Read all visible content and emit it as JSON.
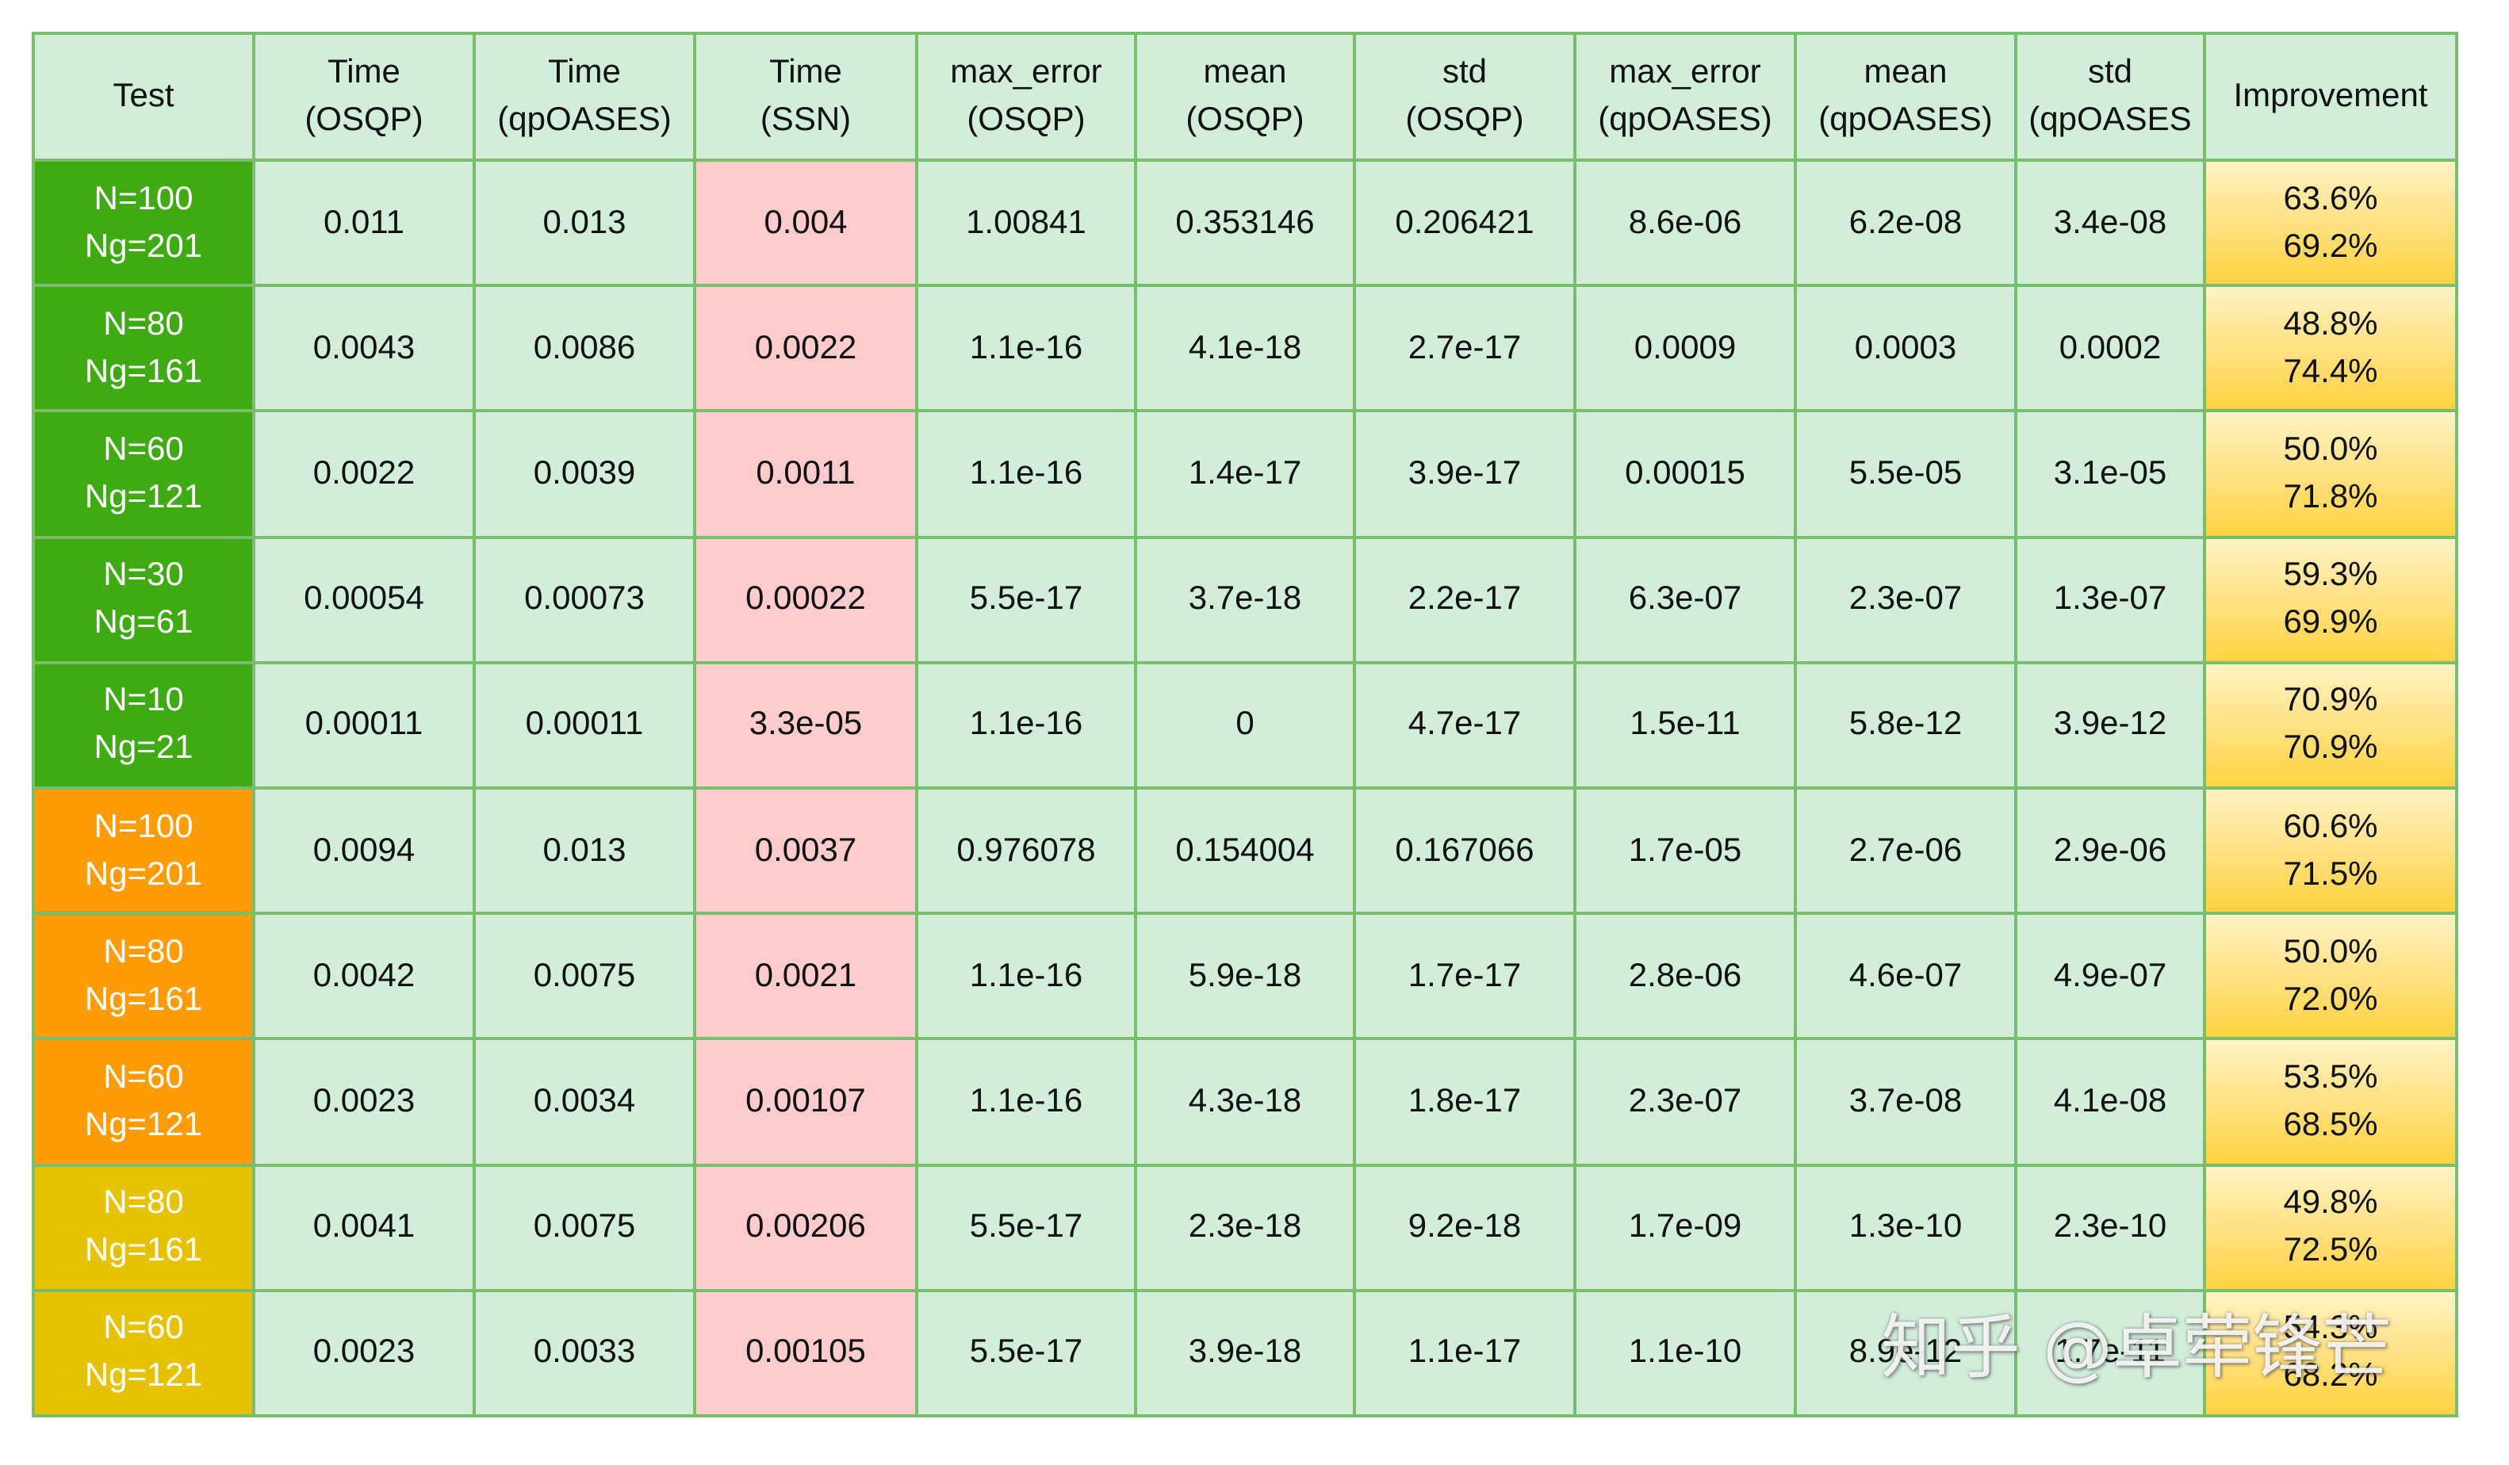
{
  "table": {
    "headers": [
      "Test",
      "Time\n(OSQP)",
      "Time\n(qpOASES)",
      "Time\n(SSN)",
      "max_error\n(OSQP)",
      "mean\n(OSQP)",
      "std\n(OSQP)",
      "max_error\n(qpOASES)",
      "mean\n(qpOASES)",
      "std\n(qpOASES",
      "Improvement"
    ],
    "colors": {
      "green_group": "#3faa12",
      "orange_group": "#fd9c04",
      "yellow_group": "#e6c300",
      "cell_bg": "#d3eddb",
      "ssn_bg": "#fecccc",
      "border": "#79be6c"
    },
    "rows": [
      {
        "group": "green",
        "test": "N=100\nNg=201",
        "time_osqp": "0.011",
        "time_qpoases": "0.013",
        "time_ssn": "0.004",
        "max_error_osqp": "1.00841",
        "mean_osqp": "0.353146",
        "std_osqp": "0.206421",
        "max_error_qpoases": "8.6e-06",
        "mean_qpoases": "6.2e-08",
        "std_qpoases": "3.4e-08",
        "improvement": "63.6%\n69.2%"
      },
      {
        "group": "green",
        "test": "N=80\nNg=161",
        "time_osqp": "0.0043",
        "time_qpoases": "0.0086",
        "time_ssn": "0.0022",
        "max_error_osqp": "1.1e-16",
        "mean_osqp": "4.1e-18",
        "std_osqp": "2.7e-17",
        "max_error_qpoases": "0.0009",
        "mean_qpoases": "0.0003",
        "std_qpoases": "0.0002",
        "improvement": "48.8%\n74.4%"
      },
      {
        "group": "green",
        "test": "N=60\nNg=121",
        "time_osqp": "0.0022",
        "time_qpoases": "0.0039",
        "time_ssn": "0.0011",
        "max_error_osqp": "1.1e-16",
        "mean_osqp": "1.4e-17",
        "std_osqp": "3.9e-17",
        "max_error_qpoases": "0.00015",
        "mean_qpoases": "5.5e-05",
        "std_qpoases": "3.1e-05",
        "improvement": "50.0%\n71.8%"
      },
      {
        "group": "green",
        "test": "N=30\nNg=61",
        "time_osqp": "0.00054",
        "time_qpoases": "0.00073",
        "time_ssn": "0.00022",
        "max_error_osqp": "5.5e-17",
        "mean_osqp": "3.7e-18",
        "std_osqp": "2.2e-17",
        "max_error_qpoases": "6.3e-07",
        "mean_qpoases": "2.3e-07",
        "std_qpoases": "1.3e-07",
        "improvement": "59.3%\n69.9%"
      },
      {
        "group": "green",
        "test": "N=10\nNg=21",
        "time_osqp": "0.00011",
        "time_qpoases": "0.00011",
        "time_ssn": "3.3e-05",
        "max_error_osqp": "1.1e-16",
        "mean_osqp": "0",
        "std_osqp": "4.7e-17",
        "max_error_qpoases": "1.5e-11",
        "mean_qpoases": "5.8e-12",
        "std_qpoases": "3.9e-12",
        "improvement": "70.9%\n70.9%"
      },
      {
        "group": "orange",
        "test": "N=100\nNg=201",
        "time_osqp": "0.0094",
        "time_qpoases": "0.013",
        "time_ssn": "0.0037",
        "max_error_osqp": "0.976078",
        "mean_osqp": "0.154004",
        "std_osqp": "0.167066",
        "max_error_qpoases": "1.7e-05",
        "mean_qpoases": "2.7e-06",
        "std_qpoases": "2.9e-06",
        "improvement": "60.6%\n71.5%"
      },
      {
        "group": "orange",
        "test": "N=80\nNg=161",
        "time_osqp": "0.0042",
        "time_qpoases": "0.0075",
        "time_ssn": "0.0021",
        "max_error_osqp": "1.1e-16",
        "mean_osqp": "5.9e-18",
        "std_osqp": "1.7e-17",
        "max_error_qpoases": "2.8e-06",
        "mean_qpoases": "4.6e-07",
        "std_qpoases": "4.9e-07",
        "improvement": "50.0%\n72.0%"
      },
      {
        "group": "orange",
        "test": "N=60\nNg=121",
        "time_osqp": "0.0023",
        "time_qpoases": "0.0034",
        "time_ssn": "0.00107",
        "max_error_osqp": "1.1e-16",
        "mean_osqp": "4.3e-18",
        "std_osqp": "1.8e-17",
        "max_error_qpoases": "2.3e-07",
        "mean_qpoases": "3.7e-08",
        "std_qpoases": "4.1e-08",
        "improvement": "53.5%\n68.5%"
      },
      {
        "group": "yellow",
        "test": "N=80\nNg=161",
        "time_osqp": "0.0041",
        "time_qpoases": "0.0075",
        "time_ssn": "0.00206",
        "max_error_osqp": "5.5e-17",
        "mean_osqp": "2.3e-18",
        "std_osqp": "9.2e-18",
        "max_error_qpoases": "1.7e-09",
        "mean_qpoases": "1.3e-10",
        "std_qpoases": "2.3e-10",
        "improvement": "49.8%\n72.5%"
      },
      {
        "group": "yellow",
        "test": "N=60\nNg=121",
        "time_osqp": "0.0023",
        "time_qpoases": "0.0033",
        "time_ssn": "0.00105",
        "max_error_osqp": "5.5e-17",
        "mean_osqp": "3.9e-18",
        "std_osqp": "1.1e-17",
        "max_error_qpoases": "1.1e-10",
        "mean_qpoases": "8.9e-12",
        "std_qpoases": "1.7e-11",
        "improvement": "54.3%\n68.2%"
      }
    ]
  },
  "watermark": {
    "text": "知乎 @卓荦锋芒"
  }
}
